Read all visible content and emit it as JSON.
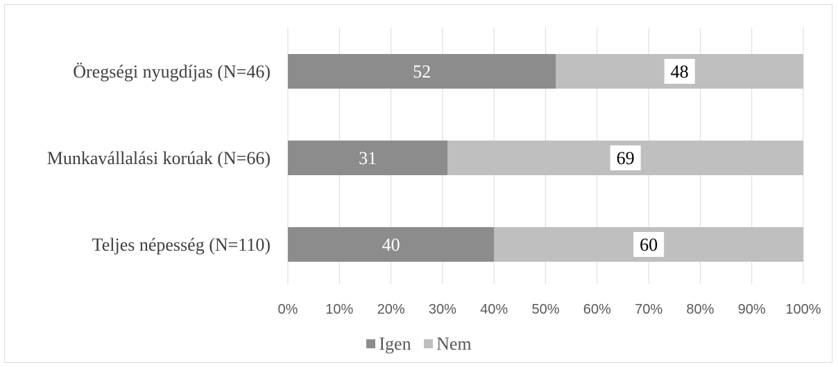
{
  "chart_data": {
    "type": "bar",
    "orientation": "horizontal",
    "stacked": "percent",
    "categories": [
      "Öregségi nyugdíjas (N=46)",
      "Munkavállalási korúak (N=66)",
      "Teljes népesség (N=110)"
    ],
    "series": [
      {
        "name": "Igen",
        "values": [
          52,
          31,
          40
        ],
        "color": "#8c8c8c",
        "label_color": "#ffffff"
      },
      {
        "name": "Nem",
        "values": [
          48,
          69,
          60
        ],
        "color": "#bfbfbf",
        "label_color": "#000000"
      }
    ],
    "x_ticks": [
      "0%",
      "10%",
      "20%",
      "30%",
      "40%",
      "50%",
      "60%",
      "70%",
      "80%",
      "90%",
      "100%"
    ],
    "xlim": [
      0,
      100
    ],
    "grid": "vertical",
    "legend": "bottom"
  }
}
